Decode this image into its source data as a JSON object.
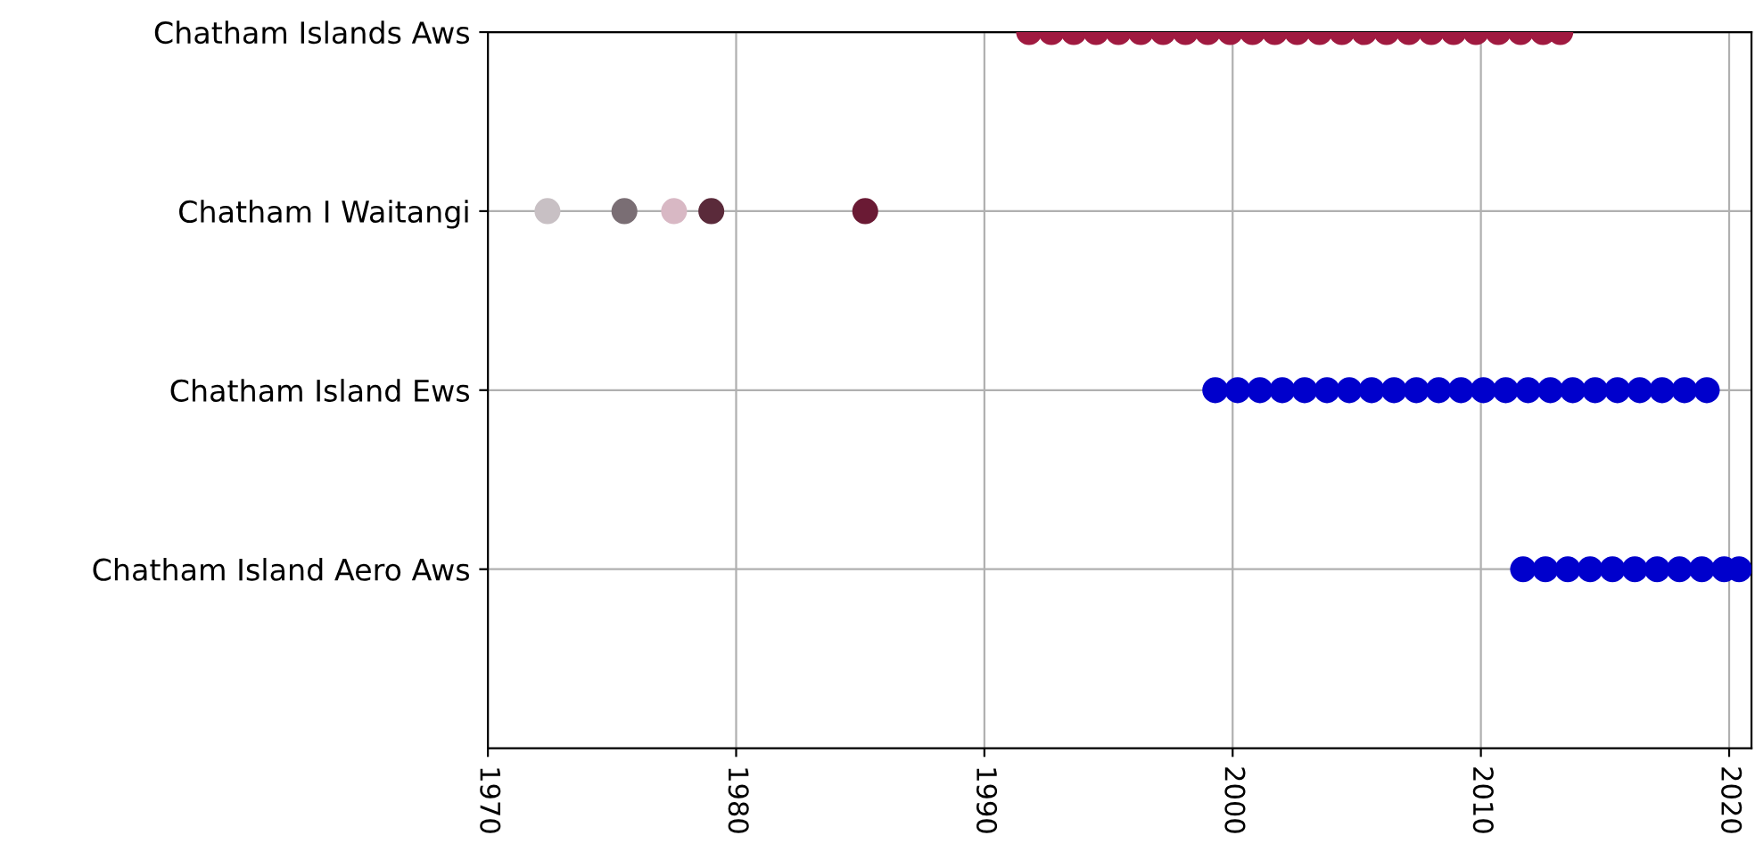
{
  "chart_data": {
    "type": "scatter",
    "orientation": "horizontal",
    "categories": [
      "Chatham Islands Aws",
      "Chatham I Waitangi",
      "Chatham Island Ews",
      "Chatham Island Aero Aws"
    ],
    "xlim": [
      1970,
      2020.9
    ],
    "xticks": [
      1970,
      1980,
      1990,
      2000,
      2010,
      2020
    ],
    "grid": true,
    "marker": "circle",
    "series": [
      {
        "colors": [
          "#a01a40",
          "#c8c0c4",
          "#0000cc",
          "#0000cc"
        ],
        "values": [
          1991.8,
          1972.4,
          1999.3,
          2011.7
        ]
      },
      {
        "colors": [
          "#a01a40",
          "#7a6e74",
          "#0000cc",
          "#0000cc"
        ],
        "values": [
          1992.7,
          1975.5,
          2000.2,
          2012.6
        ]
      },
      {
        "colors": [
          "#a01a40",
          "#d8b8c4",
          "#0000cc",
          "#0000cc"
        ],
        "values": [
          1993.6,
          1977.5,
          2001.1,
          2013.5
        ]
      },
      {
        "colors": [
          "#a01a40",
          null,
          "#0000cc",
          "#0000cc"
        ],
        "values": [
          1994.5,
          null,
          2002.0,
          2014.4
        ]
      },
      {
        "colors": [
          "#a01a40",
          "#5a2a3a",
          "#0000cc",
          "#0000cc"
        ],
        "values": [
          1995.4,
          1979.0,
          2002.9,
          2015.3
        ]
      },
      {
        "colors": [
          "#a01a40",
          null,
          "#0000cc",
          "#0000cc"
        ],
        "values": [
          1996.3,
          null,
          2003.8,
          2016.2
        ]
      },
      {
        "colors": [
          "#a01a40",
          "#6a1a34",
          "#0000cc",
          "#0000cc"
        ],
        "values": [
          1997.2,
          1985.2,
          2004.7,
          2017.1
        ]
      },
      {
        "colors": [
          "#a01a40",
          null,
          "#0000cc",
          "#0000cc"
        ],
        "values": [
          1998.1,
          null,
          2005.6,
          2018.0
        ]
      },
      {
        "colors": [
          "#a01a40",
          null,
          "#0000cc",
          "#0000cc"
        ],
        "values": [
          1999.0,
          null,
          2006.5,
          2018.9
        ]
      },
      {
        "colors": [
          "#a01a40",
          null,
          "#0000cc",
          "#0000cc"
        ],
        "values": [
          1999.9,
          null,
          2007.4,
          2019.8
        ]
      },
      {
        "colors": [
          "#a01a40",
          null,
          "#0000cc",
          "#0000cc"
        ],
        "values": [
          2000.8,
          null,
          2008.3,
          2020.4
        ]
      },
      {
        "colors": [
          "#a01a40",
          null,
          "#0000cc",
          null
        ],
        "values": [
          2001.7,
          null,
          2009.2,
          null
        ]
      },
      {
        "colors": [
          "#a01a40",
          null,
          "#0000cc",
          null
        ],
        "values": [
          2002.6,
          null,
          2010.1,
          null
        ]
      },
      {
        "colors": [
          "#a01a40",
          null,
          "#0000cc",
          null
        ],
        "values": [
          2003.5,
          null,
          2011.0,
          null
        ]
      },
      {
        "colors": [
          "#a01a40",
          null,
          "#0000cc",
          null
        ],
        "values": [
          2004.4,
          null,
          2011.9,
          null
        ]
      },
      {
        "colors": [
          "#a01a40",
          null,
          "#0000cc",
          null
        ],
        "values": [
          2005.3,
          null,
          2012.8,
          null
        ]
      },
      {
        "colors": [
          "#a01a40",
          null,
          "#0000cc",
          null
        ],
        "values": [
          2006.2,
          null,
          2013.7,
          null
        ]
      },
      {
        "colors": [
          "#a01a40",
          null,
          "#0000cc",
          null
        ],
        "values": [
          2007.1,
          null,
          2014.6,
          null
        ]
      },
      {
        "colors": [
          "#a01a40",
          null,
          "#0000cc",
          null
        ],
        "values": [
          2008.0,
          null,
          2015.5,
          null
        ]
      },
      {
        "colors": [
          "#a01a40",
          null,
          "#0000cc",
          null
        ],
        "values": [
          2008.9,
          null,
          2016.4,
          null
        ]
      },
      {
        "colors": [
          "#a01a40",
          null,
          "#0000cc",
          null
        ],
        "values": [
          2009.8,
          null,
          2017.3,
          null
        ]
      },
      {
        "colors": [
          "#a01a40",
          null,
          "#0000cc",
          null
        ],
        "values": [
          2010.7,
          null,
          2018.2,
          null
        ]
      },
      {
        "colors": [
          "#a01a40",
          null,
          "#0000cc",
          null
        ],
        "values": [
          2011.6,
          null,
          2019.1,
          null
        ]
      },
      {
        "colors": [
          "#a01a40",
          null,
          null,
          null
        ],
        "values": [
          2012.5,
          null,
          null,
          null
        ]
      },
      {
        "colors": [
          "#a01a40",
          null,
          null,
          null
        ],
        "values": [
          2013.2,
          null,
          null,
          null
        ]
      }
    ]
  }
}
